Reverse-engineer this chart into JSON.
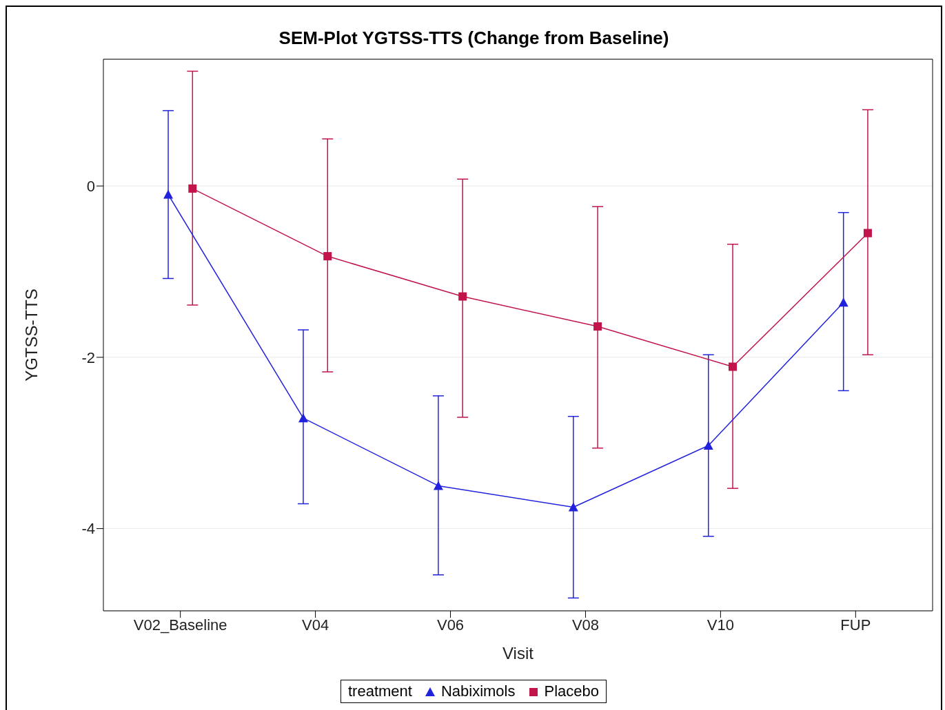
{
  "chart_data": {
    "type": "line",
    "title": "SEM-Plot YGTSS-TTS (Change from Baseline)",
    "xlabel": "Visit",
    "ylabel": "YGTSS-TTS",
    "legend_title": "treatment",
    "categories": [
      "V02_Baseline",
      "V04",
      "V06",
      "V08",
      "V10",
      "FUP"
    ],
    "series": [
      {
        "name": "Nabiximols",
        "color": "#2222dd",
        "marker": "triangle",
        "values": [
          -0.1,
          -2.71,
          -3.5,
          -3.75,
          -3.03,
          -1.36
        ],
        "errors": [
          [
            -1.08,
            0.88
          ],
          [
            -3.71,
            -1.68
          ],
          [
            -4.54,
            -2.45
          ],
          [
            -4.81,
            -2.69
          ],
          [
            -4.09,
            -1.97
          ],
          [
            -2.39,
            -0.31
          ]
        ]
      },
      {
        "name": "Placebo",
        "color": "#c0144a",
        "marker": "square",
        "values": [
          -0.03,
          -0.82,
          -1.29,
          -1.64,
          -2.11,
          -0.55
        ],
        "errors": [
          [
            -1.39,
            1.34
          ],
          [
            -2.17,
            0.55
          ],
          [
            -2.7,
            0.08
          ],
          [
            -3.06,
            -0.24
          ],
          [
            -3.53,
            -0.68
          ],
          [
            -1.97,
            0.89
          ]
        ]
      }
    ],
    "ylim": [
      -4.96,
      1.48
    ],
    "yticks": [
      0,
      -2,
      -4
    ],
    "grid": "y",
    "legend": "bottom"
  }
}
